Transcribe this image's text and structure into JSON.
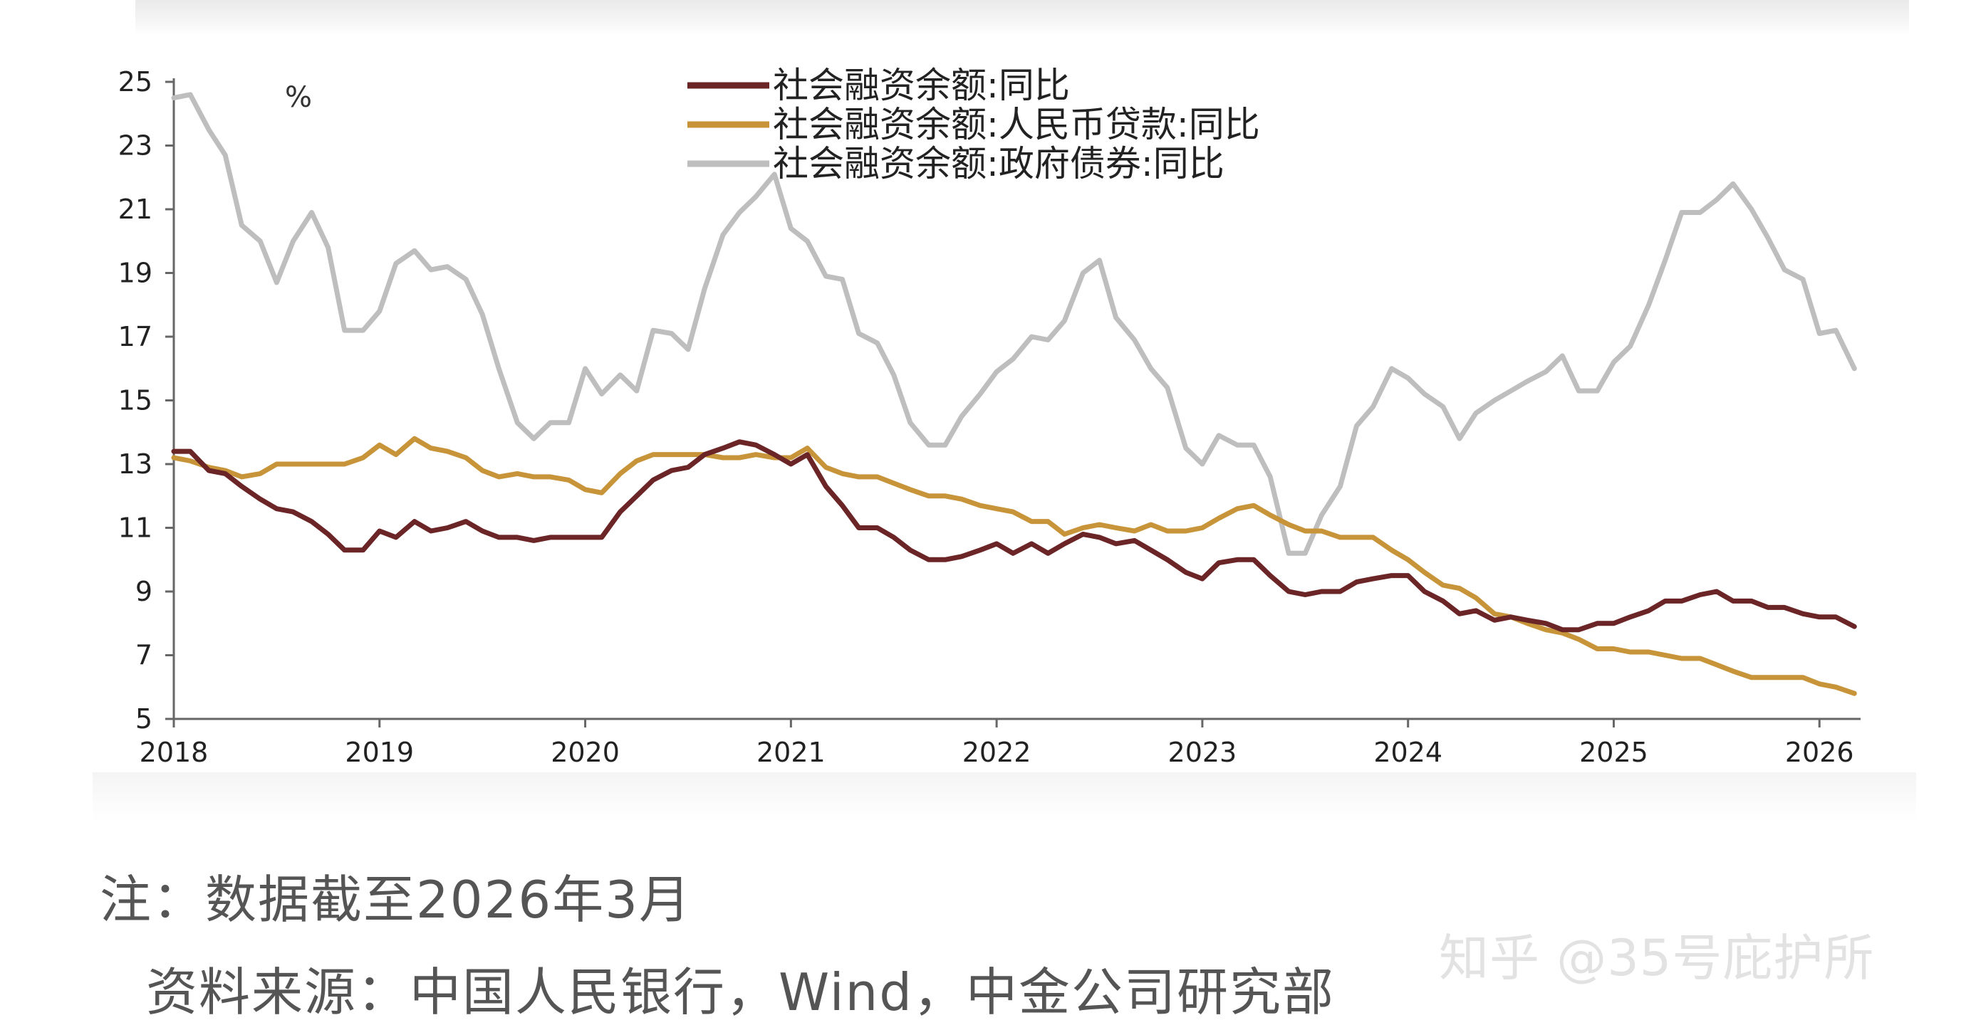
{
  "chart_data": {
    "type": "line",
    "unit_label": "%",
    "ylim": [
      5,
      25
    ],
    "yticks": [
      25,
      23,
      21,
      19,
      17,
      15,
      13,
      11,
      9,
      7,
      5
    ],
    "xlim": [
      2018,
      2026.2
    ],
    "xticks": [
      "2018",
      "2019",
      "2020",
      "2021",
      "2022",
      "2023",
      "2024",
      "2025",
      "2026"
    ],
    "grid": false,
    "legend": "top-center",
    "series": [
      {
        "name": "社会融资余额:同比",
        "color": "#6b2527",
        "points": [
          [
            2018.0,
            13.4
          ],
          [
            2018.08,
            13.4
          ],
          [
            2018.17,
            12.8
          ],
          [
            2018.25,
            12.7
          ],
          [
            2018.33,
            12.3
          ],
          [
            2018.42,
            11.9
          ],
          [
            2018.5,
            11.6
          ],
          [
            2018.58,
            11.5
          ],
          [
            2018.67,
            11.2
          ],
          [
            2018.75,
            10.8
          ],
          [
            2018.83,
            10.3
          ],
          [
            2018.92,
            10.3
          ],
          [
            2019.0,
            10.9
          ],
          [
            2019.08,
            10.7
          ],
          [
            2019.17,
            11.2
          ],
          [
            2019.25,
            10.9
          ],
          [
            2019.33,
            11.0
          ],
          [
            2019.42,
            11.2
          ],
          [
            2019.5,
            10.9
          ],
          [
            2019.58,
            10.7
          ],
          [
            2019.67,
            10.7
          ],
          [
            2019.75,
            10.6
          ],
          [
            2019.83,
            10.7
          ],
          [
            2019.92,
            10.7
          ],
          [
            2020.0,
            10.7
          ],
          [
            2020.08,
            10.7
          ],
          [
            2020.17,
            11.5
          ],
          [
            2020.25,
            12.0
          ],
          [
            2020.33,
            12.5
          ],
          [
            2020.42,
            12.8
          ],
          [
            2020.5,
            12.9
          ],
          [
            2020.58,
            13.3
          ],
          [
            2020.67,
            13.5
          ],
          [
            2020.75,
            13.7
          ],
          [
            2020.83,
            13.6
          ],
          [
            2020.92,
            13.3
          ],
          [
            2021.0,
            13.0
          ],
          [
            2021.08,
            13.3
          ],
          [
            2021.17,
            12.3
          ],
          [
            2021.25,
            11.7
          ],
          [
            2021.33,
            11.0
          ],
          [
            2021.42,
            11.0
          ],
          [
            2021.5,
            10.7
          ],
          [
            2021.58,
            10.3
          ],
          [
            2021.67,
            10.0
          ],
          [
            2021.75,
            10.0
          ],
          [
            2021.83,
            10.1
          ],
          [
            2021.92,
            10.3
          ],
          [
            2022.0,
            10.5
          ],
          [
            2022.08,
            10.2
          ],
          [
            2022.17,
            10.5
          ],
          [
            2022.25,
            10.2
          ],
          [
            2022.33,
            10.5
          ],
          [
            2022.42,
            10.8
          ],
          [
            2022.5,
            10.7
          ],
          [
            2022.58,
            10.5
          ],
          [
            2022.67,
            10.6
          ],
          [
            2022.75,
            10.3
          ],
          [
            2022.83,
            10.0
          ],
          [
            2022.92,
            9.6
          ],
          [
            2023.0,
            9.4
          ],
          [
            2023.08,
            9.9
          ],
          [
            2023.17,
            10.0
          ],
          [
            2023.25,
            10.0
          ],
          [
            2023.33,
            9.5
          ],
          [
            2023.42,
            9.0
          ],
          [
            2023.5,
            8.9
          ],
          [
            2023.58,
            9.0
          ],
          [
            2023.67,
            9.0
          ],
          [
            2023.75,
            9.3
          ],
          [
            2023.83,
            9.4
          ],
          [
            2023.92,
            9.5
          ],
          [
            2024.0,
            9.5
          ],
          [
            2024.08,
            9.0
          ],
          [
            2024.17,
            8.7
          ],
          [
            2024.25,
            8.3
          ],
          [
            2024.33,
            8.4
          ],
          [
            2024.42,
            8.1
          ],
          [
            2024.5,
            8.2
          ],
          [
            2024.58,
            8.1
          ],
          [
            2024.67,
            8.0
          ],
          [
            2024.75,
            7.8
          ],
          [
            2024.83,
            7.8
          ],
          [
            2024.92,
            8.0
          ],
          [
            2025.0,
            8.0
          ],
          [
            2025.08,
            8.2
          ],
          [
            2025.17,
            8.4
          ],
          [
            2025.25,
            8.7
          ],
          [
            2025.33,
            8.7
          ],
          [
            2025.42,
            8.9
          ],
          [
            2025.5,
            9.0
          ],
          [
            2025.58,
            8.7
          ],
          [
            2025.67,
            8.7
          ],
          [
            2025.75,
            8.5
          ],
          [
            2025.83,
            8.5
          ],
          [
            2025.92,
            8.3
          ],
          [
            2026.0,
            8.2
          ],
          [
            2026.08,
            8.2
          ],
          [
            2026.17,
            7.9
          ]
        ]
      },
      {
        "name": "社会融资余额:人民币贷款:同比",
        "color": "#c8943a",
        "points": [
          [
            2018.0,
            13.2
          ],
          [
            2018.08,
            13.1
          ],
          [
            2018.17,
            12.9
          ],
          [
            2018.25,
            12.8
          ],
          [
            2018.33,
            12.6
          ],
          [
            2018.42,
            12.7
          ],
          [
            2018.5,
            13.0
          ],
          [
            2018.58,
            13.0
          ],
          [
            2018.67,
            13.0
          ],
          [
            2018.75,
            13.0
          ],
          [
            2018.83,
            13.0
          ],
          [
            2018.92,
            13.2
          ],
          [
            2019.0,
            13.6
          ],
          [
            2019.08,
            13.3
          ],
          [
            2019.17,
            13.8
          ],
          [
            2019.25,
            13.5
          ],
          [
            2019.33,
            13.4
          ],
          [
            2019.42,
            13.2
          ],
          [
            2019.5,
            12.8
          ],
          [
            2019.58,
            12.6
          ],
          [
            2019.67,
            12.7
          ],
          [
            2019.75,
            12.6
          ],
          [
            2019.83,
            12.6
          ],
          [
            2019.92,
            12.5
          ],
          [
            2020.0,
            12.2
          ],
          [
            2020.08,
            12.1
          ],
          [
            2020.17,
            12.7
          ],
          [
            2020.25,
            13.1
          ],
          [
            2020.33,
            13.3
          ],
          [
            2020.42,
            13.3
          ],
          [
            2020.5,
            13.3
          ],
          [
            2020.58,
            13.3
          ],
          [
            2020.67,
            13.2
          ],
          [
            2020.75,
            13.2
          ],
          [
            2020.83,
            13.3
          ],
          [
            2020.92,
            13.2
          ],
          [
            2021.0,
            13.2
          ],
          [
            2021.08,
            13.5
          ],
          [
            2021.17,
            12.9
          ],
          [
            2021.25,
            12.7
          ],
          [
            2021.33,
            12.6
          ],
          [
            2021.42,
            12.6
          ],
          [
            2021.5,
            12.4
          ],
          [
            2021.58,
            12.2
          ],
          [
            2021.67,
            12.0
          ],
          [
            2021.75,
            12.0
          ],
          [
            2021.83,
            11.9
          ],
          [
            2021.92,
            11.7
          ],
          [
            2022.0,
            11.6
          ],
          [
            2022.08,
            11.5
          ],
          [
            2022.17,
            11.2
          ],
          [
            2022.25,
            11.2
          ],
          [
            2022.33,
            10.8
          ],
          [
            2022.42,
            11.0
          ],
          [
            2022.5,
            11.1
          ],
          [
            2022.58,
            11.0
          ],
          [
            2022.67,
            10.9
          ],
          [
            2022.75,
            11.1
          ],
          [
            2022.83,
            10.9
          ],
          [
            2022.92,
            10.9
          ],
          [
            2023.0,
            11.0
          ],
          [
            2023.08,
            11.3
          ],
          [
            2023.17,
            11.6
          ],
          [
            2023.25,
            11.7
          ],
          [
            2023.33,
            11.4
          ],
          [
            2023.42,
            11.1
          ],
          [
            2023.5,
            10.9
          ],
          [
            2023.58,
            10.9
          ],
          [
            2023.67,
            10.7
          ],
          [
            2023.75,
            10.7
          ],
          [
            2023.83,
            10.7
          ],
          [
            2023.92,
            10.3
          ],
          [
            2024.0,
            10.0
          ],
          [
            2024.08,
            9.6
          ],
          [
            2024.17,
            9.2
          ],
          [
            2024.25,
            9.1
          ],
          [
            2024.33,
            8.8
          ],
          [
            2024.42,
            8.3
          ],
          [
            2024.5,
            8.2
          ],
          [
            2024.58,
            8.0
          ],
          [
            2024.67,
            7.8
          ],
          [
            2024.75,
            7.7
          ],
          [
            2024.83,
            7.5
          ],
          [
            2024.92,
            7.2
          ],
          [
            2025.0,
            7.2
          ],
          [
            2025.08,
            7.1
          ],
          [
            2025.17,
            7.1
          ],
          [
            2025.25,
            7.0
          ],
          [
            2025.33,
            6.9
          ],
          [
            2025.42,
            6.9
          ],
          [
            2025.5,
            6.7
          ],
          [
            2025.58,
            6.5
          ],
          [
            2025.67,
            6.3
          ],
          [
            2025.75,
            6.3
          ],
          [
            2025.83,
            6.3
          ],
          [
            2025.92,
            6.3
          ],
          [
            2026.0,
            6.1
          ],
          [
            2026.08,
            6.0
          ],
          [
            2026.17,
            5.8
          ]
        ]
      },
      {
        "name": "社会融资余额:政府债券:同比",
        "color": "#bebebe",
        "points": [
          [
            2018.0,
            24.5
          ],
          [
            2018.08,
            24.6
          ],
          [
            2018.17,
            23.5
          ],
          [
            2018.25,
            22.7
          ],
          [
            2018.33,
            20.5
          ],
          [
            2018.42,
            20.0
          ],
          [
            2018.5,
            18.7
          ],
          [
            2018.58,
            20.0
          ],
          [
            2018.67,
            20.9
          ],
          [
            2018.75,
            19.8
          ],
          [
            2018.83,
            17.2
          ],
          [
            2018.92,
            17.2
          ],
          [
            2019.0,
            17.8
          ],
          [
            2019.08,
            19.3
          ],
          [
            2019.17,
            19.7
          ],
          [
            2019.25,
            19.1
          ],
          [
            2019.33,
            19.2
          ],
          [
            2019.42,
            18.8
          ],
          [
            2019.5,
            17.7
          ],
          [
            2019.58,
            16.0
          ],
          [
            2019.67,
            14.3
          ],
          [
            2019.75,
            13.8
          ],
          [
            2019.83,
            14.3
          ],
          [
            2019.92,
            14.3
          ],
          [
            2020.0,
            16.0
          ],
          [
            2020.08,
            15.2
          ],
          [
            2020.17,
            15.8
          ],
          [
            2020.25,
            15.3
          ],
          [
            2020.33,
            17.2
          ],
          [
            2020.42,
            17.1
          ],
          [
            2020.5,
            16.6
          ],
          [
            2020.58,
            18.5
          ],
          [
            2020.67,
            20.2
          ],
          [
            2020.75,
            20.9
          ],
          [
            2020.83,
            21.4
          ],
          [
            2020.92,
            22.1
          ],
          [
            2021.0,
            20.4
          ],
          [
            2021.08,
            20.0
          ],
          [
            2021.17,
            18.9
          ],
          [
            2021.25,
            18.8
          ],
          [
            2021.33,
            17.1
          ],
          [
            2021.42,
            16.8
          ],
          [
            2021.5,
            15.8
          ],
          [
            2021.58,
            14.3
          ],
          [
            2021.67,
            13.6
          ],
          [
            2021.75,
            13.6
          ],
          [
            2021.83,
            14.5
          ],
          [
            2021.92,
            15.2
          ],
          [
            2022.0,
            15.9
          ],
          [
            2022.08,
            16.3
          ],
          [
            2022.17,
            17.0
          ],
          [
            2022.25,
            16.9
          ],
          [
            2022.33,
            17.5
          ],
          [
            2022.42,
            19.0
          ],
          [
            2022.5,
            19.4
          ],
          [
            2022.58,
            17.6
          ],
          [
            2022.67,
            16.9
          ],
          [
            2022.75,
            16.0
          ],
          [
            2022.83,
            15.4
          ],
          [
            2022.92,
            13.5
          ],
          [
            2023.0,
            13.0
          ],
          [
            2023.08,
            13.9
          ],
          [
            2023.17,
            13.6
          ],
          [
            2023.25,
            13.6
          ],
          [
            2023.33,
            12.6
          ],
          [
            2023.42,
            10.2
          ],
          [
            2023.5,
            10.2
          ],
          [
            2023.58,
            11.4
          ],
          [
            2023.67,
            12.3
          ],
          [
            2023.75,
            14.2
          ],
          [
            2023.83,
            14.8
          ],
          [
            2023.92,
            16.0
          ],
          [
            2024.0,
            15.7
          ],
          [
            2024.08,
            15.2
          ],
          [
            2024.17,
            14.8
          ],
          [
            2024.25,
            13.8
          ],
          [
            2024.33,
            14.6
          ],
          [
            2024.42,
            15.0
          ],
          [
            2024.5,
            15.3
          ],
          [
            2024.58,
            15.6
          ],
          [
            2024.67,
            15.9
          ],
          [
            2024.75,
            16.4
          ],
          [
            2024.83,
            15.3
          ],
          [
            2024.92,
            15.3
          ],
          [
            2025.0,
            16.2
          ],
          [
            2025.08,
            16.7
          ],
          [
            2025.17,
            18.0
          ],
          [
            2025.25,
            19.4
          ],
          [
            2025.33,
            20.9
          ],
          [
            2025.42,
            20.9
          ],
          [
            2025.5,
            21.3
          ],
          [
            2025.58,
            21.8
          ],
          [
            2025.67,
            21.0
          ],
          [
            2025.75,
            20.1
          ],
          [
            2025.83,
            19.1
          ],
          [
            2025.92,
            18.8
          ],
          [
            2026.0,
            17.1
          ],
          [
            2026.08,
            17.2
          ],
          [
            2026.17,
            16.0
          ]
        ]
      }
    ]
  },
  "note": "注：数据截至2026年3月",
  "source": "资料来源：中国人民银行，Wind，中金公司研究部",
  "watermark": "知乎 @35号庇护所"
}
